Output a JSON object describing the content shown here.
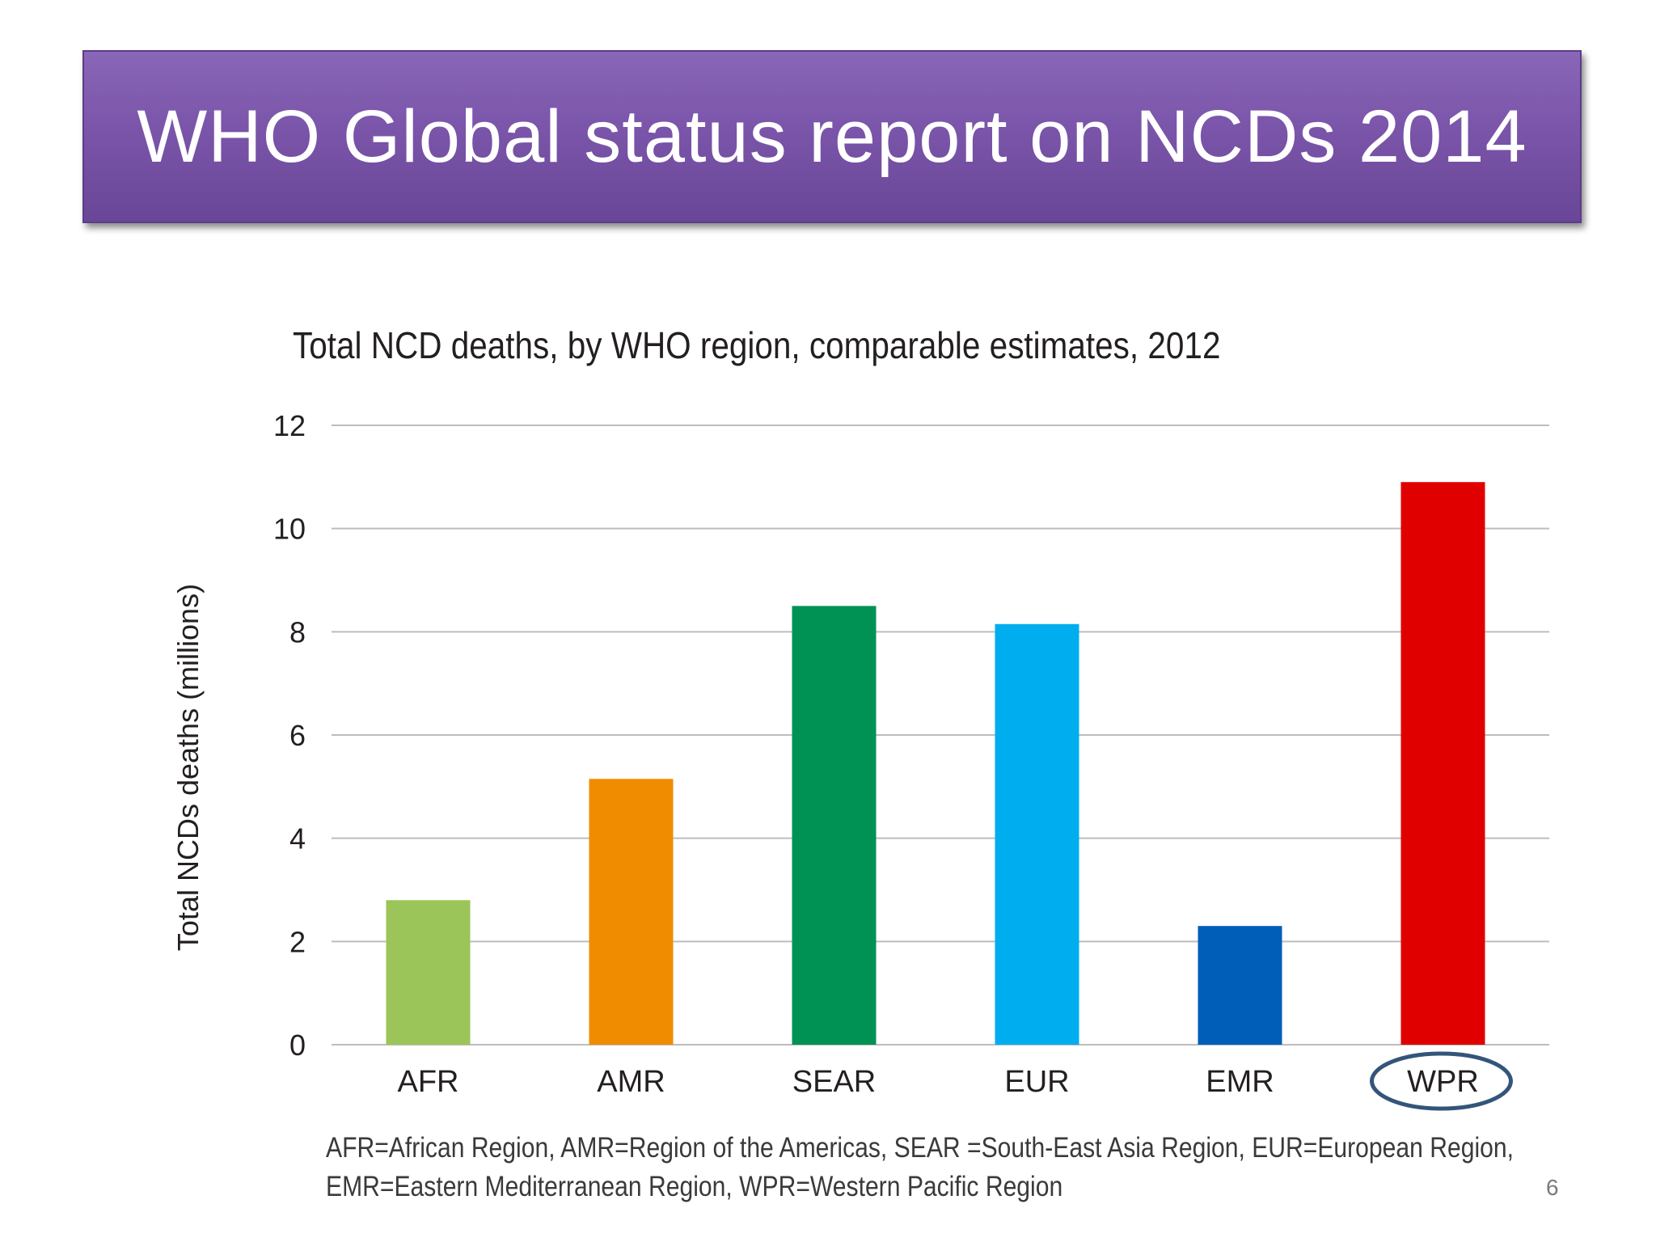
{
  "slide": {
    "title": "WHO Global status report on NCDs 2014",
    "page_number": "6"
  },
  "chart_data": {
    "type": "bar",
    "title": "Total NCD deaths, by WHO region, comparable estimates, 2012",
    "xlabel": "",
    "ylabel": "Total NCDs deaths (millions)",
    "categories": [
      "AFR",
      "AMR",
      "SEAR",
      "EUR",
      "EMR",
      "WPR"
    ],
    "values": [
      2.8,
      5.15,
      8.5,
      8.15,
      2.3,
      10.9
    ],
    "colors": [
      "#9bc459",
      "#f08c00",
      "#009155",
      "#00aeef",
      "#005eb8",
      "#e00000"
    ],
    "ylim": [
      0,
      12
    ],
    "yticks": [
      "0",
      "2",
      "4",
      "6",
      "8",
      "10",
      "12"
    ],
    "grid": true,
    "highlight": {
      "category": "WPR",
      "style": "ellipse",
      "color": "#34557a"
    }
  },
  "footnote": {
    "line1": "AFR=African Region, AMR=Region of the Americas, SEAR =South-East Asia Region, EUR=European Region,",
    "line2": "EMR=Eastern Mediterranean Region, WPR=Western Pacific Region"
  }
}
